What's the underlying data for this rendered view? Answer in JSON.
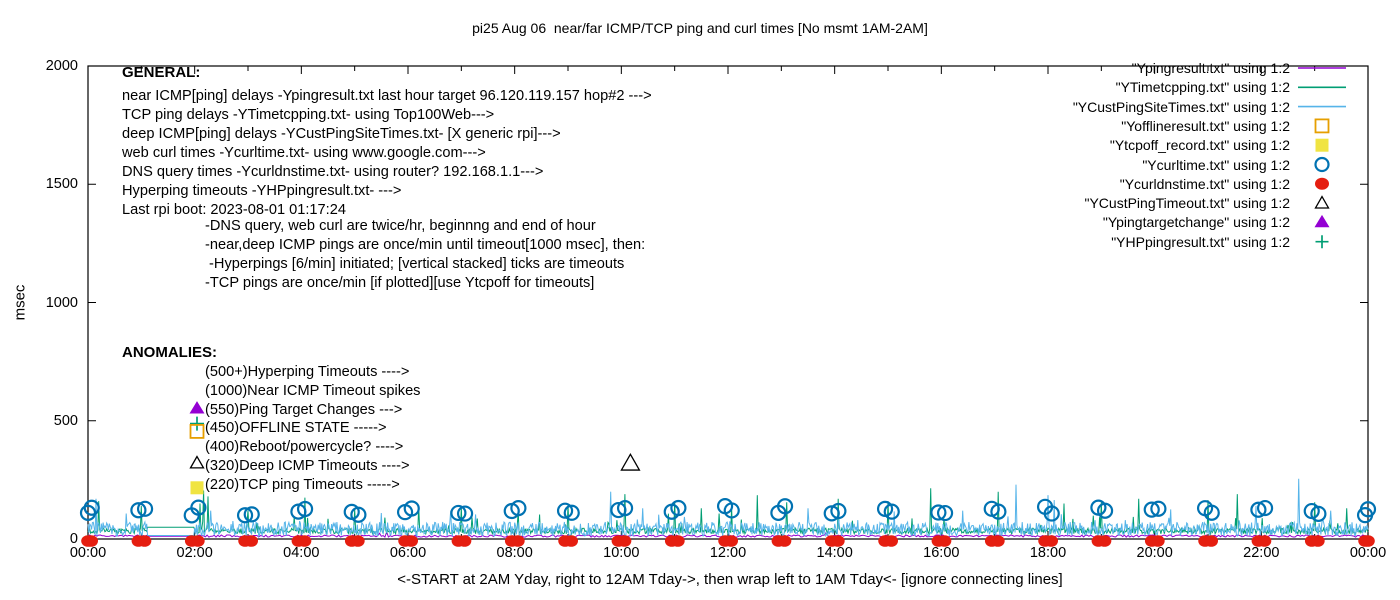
{
  "title": "pi25 Aug 06  near/far ICMP/TCP ping and curl times [No msmt 1AM-2AM]",
  "axes": {
    "ylabel": "msec",
    "xlabel": "<-START at 2AM Yday, right to 12AM Tday->, then wrap left to 1AM Tday<- [ignore connecting lines]"
  },
  "general": {
    "heading": "GENERAL:",
    "lines": [
      "near ICMP[ping] delays -Ypingresult.txt last hour target 96.120.119.157 hop#2 --->",
      "TCP ping delays -YTimetcpping.txt- using Top100Web--->",
      "deep ICMP[ping] delays -YCustPingSiteTimes.txt- [X generic rpi]--->",
      "web curl times -Ycurltime.txt- using www.google.com--->",
      "DNS query times -Ycurldnstime.txt- using router? 192.168.1.1--->",
      "Hyperping timeouts -YHPpingresult.txt- --->",
      "Last rpi boot: 2023-08-01 01:17:24"
    ],
    "notes": [
      "-DNS query, web curl are twice/hr, beginnng and end of hour",
      "-near,deep ICMP pings are once/min until timeout[1000 msec], then:",
      " -Hyperpings [6/min] initiated; [vertical stacked] ticks are timeouts",
      "-TCP pings are once/min [if plotted][use Ytcpoff for timeouts]"
    ]
  },
  "anomalies": {
    "heading": "ANOMALIES:",
    "items": [
      {
        "label": "(500+)Hyperping Timeouts ---->",
        "marker": null
      },
      {
        "label": "(1000)Near ICMP Timeout spikes",
        "marker": null
      },
      {
        "label": "(550)Ping Target Changes --->",
        "marker": "triangle-filled",
        "marker_color": "#9400d3",
        "extra_marker": "plus",
        "extra_marker_color": "#009e73"
      },
      {
        "label": "(450)OFFLINE STATE ----->",
        "marker": "square-open",
        "marker_color": "#e69f00"
      },
      {
        "label": "(400)Reboot/powercycle? ---->",
        "marker": null
      },
      {
        "label": "(320)Deep ICMP Timeouts ---->",
        "marker": "triangle-open",
        "marker_color": "#000000"
      },
      {
        "label": "(220)TCP ping Timeouts ----->",
        "marker": "square-filled",
        "marker_color": "#f0e442"
      }
    ]
  },
  "legend": {
    "items": [
      {
        "label": "\"Ypingresult.txt\" using 1:2",
        "marker": "line",
        "color": "#9400d3"
      },
      {
        "label": "\"YTimetcpping.txt\" using 1:2",
        "marker": "line",
        "color": "#009e73"
      },
      {
        "label": "\"YCustPingSiteTimes.txt\" using 1:2",
        "marker": "line",
        "color": "#56b4e9"
      },
      {
        "label": "\"Yofflineresult.txt\" using 1:2",
        "marker": "square-open",
        "color": "#e69f00"
      },
      {
        "label": "\"Ytcpoff_record.txt\" using 1:2",
        "marker": "square-filled",
        "color": "#f0e442"
      },
      {
        "label": "\"Ycurltime.txt\" using 1:2",
        "marker": "circle-open",
        "color": "#0072b2"
      },
      {
        "label": "\"Ycurldnstime.txt\" using 1:2",
        "marker": "circle-filled",
        "color": "#e51e10"
      },
      {
        "label": "\"YCustPingTimeout.txt\" using 1:2",
        "marker": "triangle-open",
        "color": "#000000"
      },
      {
        "label": "\"Ypingtargetchange\" using 1:2",
        "marker": "triangle-filled",
        "color": "#9400d3"
      },
      {
        "label": "\"YHPpingresult.txt\" using 1:2",
        "marker": "plus",
        "color": "#009e73"
      }
    ]
  },
  "chart_data": {
    "type": "line",
    "title": "pi25 Aug 06  near/far ICMP/TCP ping and curl times [No msmt 1AM-2AM]",
    "xlabel": "<-START at 2AM Yday, right to 12AM Tday->, then wrap left to 1AM Tday<- [ignore connecting lines]",
    "ylabel": "msec",
    "ylim": [
      0,
      2000
    ],
    "y_tick_values": [
      0,
      500,
      1000,
      1500,
      2000
    ],
    "xlim_hours": [
      0,
      24
    ],
    "x_major_tick_hours": 2,
    "x_minor_tick_hours": 1,
    "x_tick_labels": [
      "00:00",
      "02:00",
      "04:00",
      "06:00",
      "08:00",
      "10:00",
      "12:00",
      "14:00",
      "16:00",
      "18:00",
      "20:00",
      "22:00",
      "00:00"
    ],
    "grid": false,
    "legend_position": "top-right",
    "no_measurement_gap_hours": [
      1.1,
      2.0
    ],
    "line_series": [
      {
        "name": "Ypingresult.txt",
        "color": "#9400d3",
        "step_min": 2,
        "baseline_msec": {
          "min": 8,
          "max": 17
        },
        "spike_prob": 0.02,
        "spike_extra_msec": 18,
        "gap_value_msec": 12,
        "spikes": []
      },
      {
        "name": "YTimetcpping.txt",
        "color": "#009e73",
        "step_min": 1,
        "baseline_msec": {
          "min": 22,
          "max": 46
        },
        "spike_prob": 0.05,
        "spike_extra_msec": 70,
        "gap_value_msec": 50,
        "spikes": [
          [
            0.2,
            160
          ],
          [
            1.0,
            140
          ],
          [
            2.1,
            150
          ],
          [
            2.17,
            205
          ],
          [
            2.25,
            180
          ],
          [
            3.0,
            120
          ],
          [
            4.07,
            175
          ],
          [
            5.0,
            125
          ],
          [
            6.2,
            140
          ],
          [
            7.0,
            135
          ],
          [
            8.07,
            120
          ],
          [
            9.0,
            145
          ],
          [
            10.07,
            190
          ],
          [
            11.0,
            160
          ],
          [
            11.5,
            130
          ],
          [
            12.07,
            135
          ],
          [
            12.55,
            185
          ],
          [
            13.1,
            155
          ],
          [
            14.07,
            170
          ],
          [
            15.0,
            160
          ],
          [
            15.8,
            215
          ],
          [
            17.07,
            200
          ],
          [
            18.3,
            150
          ],
          [
            19.0,
            155
          ],
          [
            19.7,
            170
          ],
          [
            21.0,
            165
          ],
          [
            21.55,
            190
          ],
          [
            23.0,
            155
          ],
          [
            23.6,
            130
          ]
        ]
      },
      {
        "name": "YCustPingSiteTimes.txt",
        "color": "#56b4e9",
        "step_min": 1,
        "baseline_msec": {
          "min": 12,
          "max": 72
        },
        "spike_prob": 0.03,
        "spike_extra_msec": 60,
        "gap_value_msec": 15,
        "spikes": [
          [
            0.15,
            170
          ],
          [
            2.3,
            120
          ],
          [
            5.5,
            110
          ],
          [
            6.8,
            120
          ],
          [
            9.8,
            200
          ],
          [
            10.4,
            130
          ],
          [
            13.5,
            130
          ],
          [
            16.4,
            120
          ],
          [
            17.4,
            230
          ],
          [
            18.0,
            185
          ],
          [
            18.12,
            165
          ],
          [
            20.3,
            125
          ],
          [
            21.9,
            140
          ],
          [
            22.7,
            255
          ],
          [
            23.3,
            120
          ]
        ]
      }
    ],
    "point_series": [
      {
        "name": "Ycurltime.txt",
        "color": "#0072b2",
        "marker": "circle-open",
        "rule": "twice per hour, beginning and end of hour",
        "hour_offsets": [
          -0.055,
          0.07
        ],
        "msec_min": 100,
        "msec_max": 140
      },
      {
        "name": "Ycurldnstime.txt",
        "color": "#e51e10",
        "marker": "circle-filled",
        "rule": "twice per hour, beginning and end of hour",
        "hour_offsets": [
          -0.055,
          0.06
        ],
        "msec": 0
      },
      {
        "name": "YCustPingTimeout.txt",
        "color": "#000000",
        "marker": "triangle-open",
        "points": [
          [
            10.17,
            320
          ]
        ]
      }
    ]
  }
}
